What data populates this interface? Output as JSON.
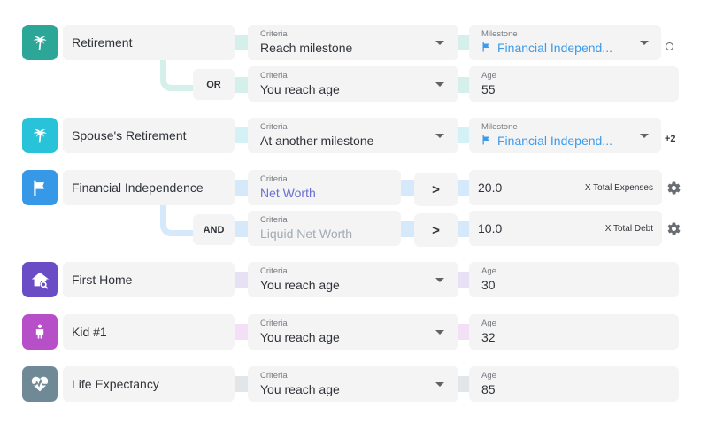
{
  "colors": {
    "teal": "#2ca697",
    "cyan": "#29c3d9",
    "blue": "#3798e8",
    "purple": "#6a4cc4",
    "magenta": "#b64fc8",
    "slate": "#6f8a96"
  },
  "rows": {
    "retirement": {
      "icon": "palm-tree-icon",
      "name": "Retirement",
      "criteria_label": "Criteria",
      "criteria_value": "Reach milestone",
      "target_label": "Milestone",
      "target_value": "Financial Independ...",
      "target_icon": "flag-icon",
      "or": {
        "logic": "OR",
        "criteria_label": "Criteria",
        "criteria_value": "You reach age",
        "target_label": "Age",
        "target_value": "55"
      }
    },
    "spouse_retirement": {
      "icon": "palm-tree-icon",
      "name": "Spouse's Retirement",
      "criteria_label": "Criteria",
      "criteria_value": "At another milestone",
      "target_label": "Milestone",
      "target_value": "Financial Independ...",
      "target_icon": "flag-icon",
      "extra": "+2"
    },
    "financial_independence": {
      "icon": "flag-icon",
      "name": "Financial Independence",
      "criteria_label": "Criteria",
      "criteria_value": "Net Worth",
      "operator": ">",
      "value": "20.0",
      "unit": "X Total Expenses",
      "and": {
        "logic": "AND",
        "criteria_label": "Criteria",
        "criteria_value": "Liquid Net Worth",
        "operator": ">",
        "value": "10.0",
        "unit": "X Total Debt"
      }
    },
    "first_home": {
      "icon": "home-search-icon",
      "name": "First Home",
      "criteria_label": "Criteria",
      "criteria_value": "You reach age",
      "target_label": "Age",
      "target_value": "30"
    },
    "kid": {
      "icon": "child-icon",
      "name": "Kid #1",
      "criteria_label": "Criteria",
      "criteria_value": "You reach age",
      "target_label": "Age",
      "target_value": "32"
    },
    "life_expectancy": {
      "icon": "heartbeat-icon",
      "name": "Life Expectancy",
      "criteria_label": "Criteria",
      "criteria_value": "You reach age",
      "target_label": "Age",
      "target_value": "85"
    }
  }
}
